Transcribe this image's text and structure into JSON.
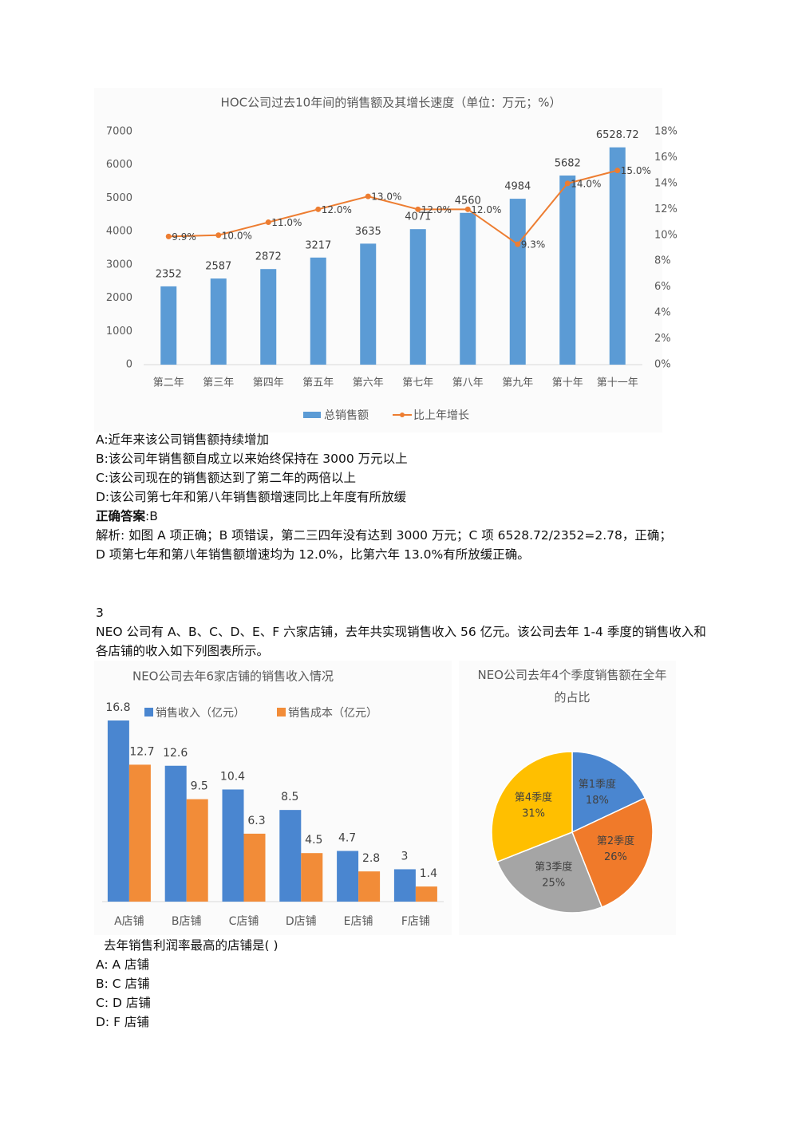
{
  "chart_data": [
    {
      "type": "combo",
      "title": "HOC公司过去10年间的销售额及其增长速度（单位：万元；%）",
      "categories": [
        "第二年",
        "第三年",
        "第四年",
        "第五年",
        "第六年",
        "第七年",
        "第八年",
        "第九年",
        "第十年",
        "第十一年"
      ],
      "series": [
        {
          "name": "总销售额",
          "type": "bar",
          "color": "#5b9bd5",
          "values": [
            2352,
            2587,
            2872,
            3217,
            3635,
            4071,
            4560,
            4984,
            5682,
            6528.72
          ]
        },
        {
          "name": "比上年增长",
          "type": "line",
          "axis": "y2",
          "color": "#ed7d31",
          "values": [
            9.9,
            10.0,
            11.0,
            12.0,
            13.0,
            12.0,
            12.0,
            9.3,
            14.0,
            15.0
          ],
          "value_labels": [
            "9.9%",
            "10.0%",
            "11.0%",
            "12.0%",
            "13.0%",
            "12.0%",
            "12.0%",
            "9.3%",
            "14.0%",
            "15.0%"
          ]
        }
      ],
      "ylim": [
        0,
        7000
      ],
      "yticks": [
        0,
        1000,
        2000,
        3000,
        4000,
        5000,
        6000,
        7000
      ],
      "y2lim": [
        0,
        18
      ],
      "y2ticks": [
        {
          "value": 0,
          "label": "0%"
        },
        {
          "value": 2,
          "label": "2%"
        },
        {
          "value": 4,
          "label": "4%"
        },
        {
          "value": 6,
          "label": "6%"
        },
        {
          "value": 8,
          "label": "8%"
        },
        {
          "value": 10,
          "label": "10%"
        },
        {
          "value": 12,
          "label": "12%"
        },
        {
          "value": 14,
          "label": "14%"
        },
        {
          "value": 16,
          "label": "16%"
        },
        {
          "value": 18,
          "label": "18%"
        }
      ]
    },
    {
      "type": "bar",
      "title": "NEO公司去年6家店铺的销售收入情况",
      "categories": [
        "A店铺",
        "B店铺",
        "C店铺",
        "D店铺",
        "E店铺",
        "F店铺"
      ],
      "series": [
        {
          "name": "销售收入（亿元）",
          "color": "#4a86d0",
          "values": [
            16.8,
            12.6,
            10.4,
            8.5,
            4.7,
            3
          ]
        },
        {
          "name": "销售成本（亿元）",
          "color": "#f28c38",
          "values": [
            12.7,
            9.5,
            6.3,
            4.5,
            2.8,
            1.4
          ]
        }
      ]
    },
    {
      "type": "pie",
      "title": "NEO公司去年4个季度销售额在全年的占比",
      "categories": [
        "第1季度",
        "第2季度",
        "第3季度",
        "第4季度"
      ],
      "values": [
        18,
        26,
        25,
        31
      ],
      "value_labels": [
        "18%",
        "26%",
        "25%",
        "31%"
      ],
      "colors": [
        "#4a86d0",
        "#f07a2a",
        "#a5a5a5",
        "#ffbf00"
      ]
    }
  ],
  "question2": {
    "options": [
      "A:近年来该公司销售额持续增加",
      "B:该公司年销售额自成立以来始终保持在 3000 万元以上",
      "C:该公司现在的销售额达到了第二年的两倍以上",
      "D:该公司第七年和第八年销售额增速同比上年度有所放缓"
    ],
    "answer_label": "正确答案",
    "answer": ":B",
    "analysis": [
      "解析: 如图 A 项正确；B 项错误，第二三四年没有达到 3000 万元；C 项 6528.72/2352=2.78，正确；",
      "D 项第七年和第八年销售额增速均为 12.0%，比第六年 13.0%有所放缓正确。"
    ]
  },
  "question3": {
    "number": "3",
    "stem": "NEO 公司有 A、B、C、D、E、F 六家店铺，去年共实现销售收入 56 亿元。该公司去年 1-4 季度的销售收入和各店铺的收入如下列图表所示。",
    "prompt": "去年销售利润率最高的店铺是(  )",
    "options": [
      "A: A 店铺",
      "B: C 店铺",
      "C: D 店铺",
      "D: F 店铺"
    ]
  }
}
